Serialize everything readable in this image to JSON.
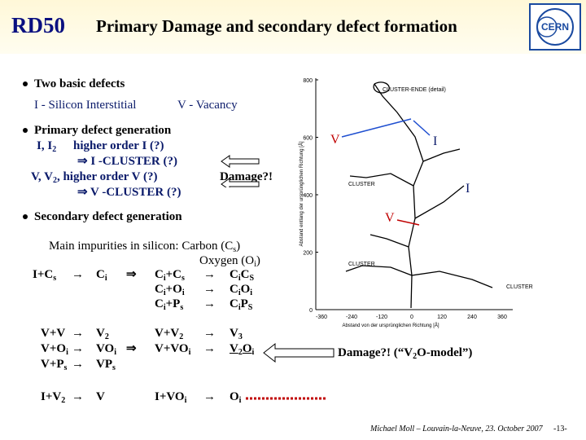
{
  "header": {
    "logo": "RD50",
    "title": "Primary Damage and secondary defect formation",
    "org": "CERN"
  },
  "bullets": [
    {
      "text": "Two basic defects",
      "items": [
        "I - Silicon Interstitial",
        "V - Vacancy"
      ]
    },
    {
      "text": "Primary defect generation",
      "lines": [
        [
          "I, I",
          "2"
        ],
        [
          "higher order I  (?)"
        ],
        [
          "⇒  I -CLUSTER    (?)"
        ],
        [
          "V, V",
          "2",
          ", higher order V  (?)"
        ],
        [
          "⇒  V -CLUSTER    (?)"
        ]
      ],
      "note": "Damage?!"
    },
    {
      "text": "Secondary defect generation"
    }
  ],
  "impurities": {
    "carbon": [
      "Main impurities in silicon: Carbon (C",
      "s",
      ")"
    ],
    "oxygen": [
      "Oxygen (O",
      "i",
      ")"
    ]
  },
  "reactions": {
    "arrow": "→",
    "implies": "⇒",
    "rows": [
      {
        "a": [
          "I+C",
          "s"
        ],
        "b": [
          "C",
          "i"
        ],
        "c": [
          "C",
          "i",
          "+C",
          "s"
        ],
        "d": [
          "C",
          "i",
          "C",
          "S"
        ]
      },
      {
        "c": [
          "C",
          "i",
          "+O",
          "i"
        ],
        "d": [
          "C",
          "i",
          "O",
          "i"
        ]
      },
      {
        "c": [
          "C",
          "i",
          "+P",
          "s"
        ],
        "d": [
          "C",
          "i",
          "P",
          "S"
        ]
      },
      {
        "a": [
          "V+V"
        ],
        "b": [
          "V",
          "2"
        ],
        "c": [
          "V+V",
          "2"
        ],
        "d": [
          "V",
          "3"
        ]
      },
      {
        "a": [
          "V+O",
          "i"
        ],
        "b": [
          "VO",
          "i"
        ],
        "c": [
          "V+VO",
          "i"
        ],
        "d": [
          "V",
          "2",
          "O",
          "i"
        ]
      },
      {
        "a": [
          "V+P",
          "s"
        ],
        "b": [
          "VP",
          "s"
        ]
      },
      {
        "a": [
          "I+V",
          "2"
        ],
        "b": [
          "V"
        ],
        "c": [
          "I+VO",
          "i"
        ],
        "d": [
          "O",
          "i"
        ]
      }
    ],
    "damage": [
      "Damage?! (“V",
      "2",
      "O-model”)"
    ]
  },
  "figure": {
    "labels": [
      "V",
      "I",
      "I",
      "V"
    ],
    "clusters": [
      "CLUSTER-ENDE (detail)",
      "CLUSTER",
      "CLUSTER",
      "CLUSTER"
    ],
    "yticks": [
      "800",
      "600",
      "400",
      "200",
      "0"
    ],
    "xticks": [
      "-360",
      "-240",
      "-120",
      "0",
      "120",
      "240",
      "360"
    ],
    "ylabel": "Abstand entlang der ursprünglichen Richtung [Å]",
    "xlabel": "Abstand von der ursprünglichen Richtung [Å]"
  },
  "footer": {
    "author": "Michael Moll – Louvain-la-Neuve, 23. October 2007",
    "page": "-13-"
  }
}
